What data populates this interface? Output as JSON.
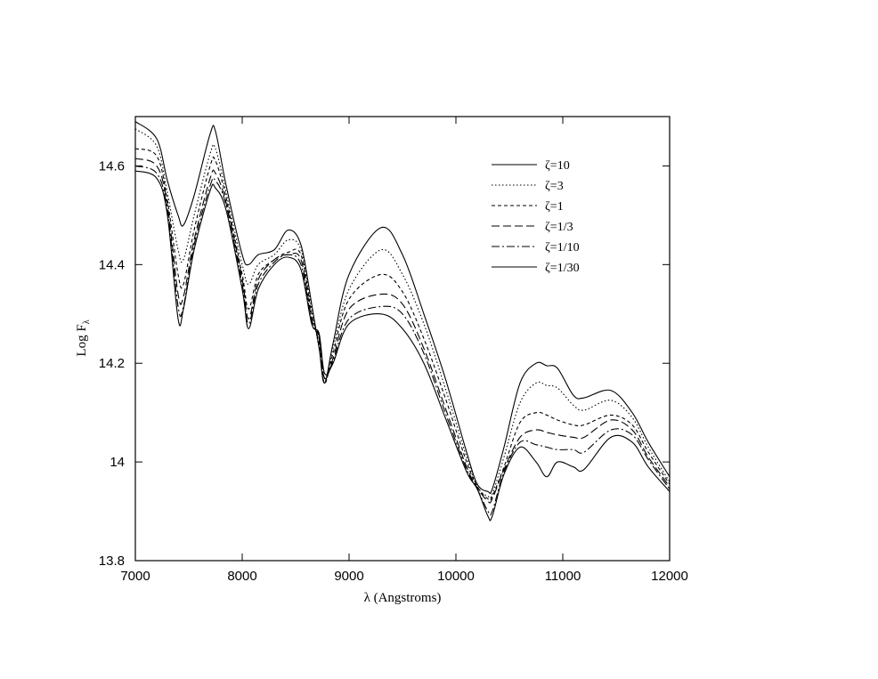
{
  "chart_data": {
    "type": "line",
    "title": "",
    "xlabel": "λ (Angstroms)",
    "ylabel": "Log F",
    "ylabel_subscript": "λ",
    "xlim": [
      7000,
      12000
    ],
    "ylim": [
      13.8,
      14.7
    ],
    "xticks": [
      7000,
      8000,
      9000,
      10000,
      11000,
      12000
    ],
    "xtick_labels": [
      "7000",
      "8000",
      "9000",
      "10000",
      "11000",
      "12000"
    ],
    "yticks": [
      13.8,
      14.0,
      14.2,
      14.4,
      14.6
    ],
    "ytick_labels": [
      "13.8",
      "14",
      "14.2",
      "14.4",
      "14.6"
    ],
    "grid": false,
    "legend_position": "top-right",
    "x": [
      7000,
      7200,
      7300,
      7400,
      7450,
      7550,
      7700,
      7750,
      7850,
      8000,
      8060,
      8150,
      8300,
      8430,
      8550,
      8650,
      8720,
      8770,
      8850,
      9000,
      9300,
      9500,
      9700,
      9900,
      10100,
      10200,
      10300,
      10340,
      10450,
      10600,
      10750,
      10850,
      10950,
      11100,
      11200,
      11450,
      11650,
      11800,
      12000
    ],
    "series": [
      {
        "name": "ζ=10",
        "dash": "",
        "values": [
          14.69,
          14.655,
          14.57,
          14.5,
          14.48,
          14.54,
          14.665,
          14.67,
          14.56,
          14.42,
          14.4,
          14.42,
          14.43,
          14.47,
          14.44,
          14.32,
          14.23,
          14.16,
          14.24,
          14.38,
          14.475,
          14.42,
          14.3,
          14.17,
          14.02,
          13.955,
          13.94,
          13.945,
          14.03,
          14.16,
          14.2,
          14.195,
          14.19,
          14.135,
          14.13,
          14.145,
          14.1,
          14.04,
          13.97
        ]
      },
      {
        "name": "ζ=3",
        "dash": "1.5,2.5",
        "values": [
          14.675,
          14.64,
          14.545,
          14.43,
          14.41,
          14.5,
          14.625,
          14.635,
          14.545,
          14.4,
          14.36,
          14.4,
          14.42,
          14.45,
          14.43,
          14.31,
          14.23,
          14.16,
          14.23,
          14.35,
          14.43,
          14.38,
          14.28,
          14.15,
          14.01,
          13.95,
          13.93,
          13.935,
          14.01,
          14.12,
          14.16,
          14.155,
          14.15,
          14.115,
          14.105,
          14.125,
          14.09,
          14.03,
          13.96
        ]
      },
      {
        "name": "ζ=1",
        "dash": "4,3",
        "values": [
          14.635,
          14.62,
          14.53,
          14.38,
          14.36,
          14.47,
          14.6,
          14.61,
          14.535,
          14.38,
          14.31,
          14.38,
          14.41,
          14.425,
          14.42,
          14.3,
          14.24,
          14.16,
          14.22,
          14.33,
          14.38,
          14.345,
          14.25,
          14.13,
          14.0,
          13.95,
          13.925,
          13.93,
          13.99,
          14.08,
          14.1,
          14.095,
          14.085,
          14.075,
          14.075,
          14.095,
          14.075,
          14.02,
          13.955
        ]
      },
      {
        "name": "ζ=1/3",
        "dash": "9,4",
        "values": [
          14.615,
          14.6,
          14.52,
          14.34,
          14.335,
          14.45,
          14.575,
          14.585,
          14.525,
          14.37,
          14.29,
          14.37,
          14.41,
          14.42,
          14.41,
          14.29,
          14.25,
          14.17,
          14.21,
          14.31,
          14.34,
          14.32,
          14.23,
          14.11,
          13.99,
          13.948,
          13.92,
          13.925,
          13.985,
          14.05,
          14.065,
          14.06,
          14.055,
          14.05,
          14.05,
          14.085,
          14.065,
          14.01,
          13.95
        ]
      },
      {
        "name": "ζ=1/10",
        "dash": "9,3,2,3",
        "values": [
          14.6,
          14.585,
          14.51,
          14.315,
          14.315,
          14.44,
          14.56,
          14.57,
          14.52,
          14.36,
          14.28,
          14.36,
          14.405,
          14.42,
          14.4,
          14.285,
          14.255,
          14.17,
          14.205,
          14.29,
          14.315,
          14.3,
          14.22,
          14.1,
          13.985,
          13.945,
          13.9,
          13.9,
          13.98,
          14.04,
          14.035,
          14.03,
          14.025,
          14.025,
          14.02,
          14.065,
          14.055,
          14.005,
          13.945
        ]
      },
      {
        "name": "ζ=1/30",
        "dash": "",
        "values": [
          14.59,
          14.575,
          14.5,
          14.29,
          14.31,
          14.43,
          14.55,
          14.555,
          14.51,
          14.35,
          14.27,
          14.35,
          14.4,
          14.415,
          14.39,
          14.28,
          14.26,
          14.18,
          14.2,
          14.28,
          14.3,
          14.27,
          14.2,
          14.09,
          13.98,
          13.945,
          13.89,
          13.89,
          13.975,
          14.03,
          14.0,
          13.97,
          14.0,
          13.99,
          13.985,
          14.05,
          14.04,
          13.99,
          13.94
        ]
      }
    ]
  }
}
